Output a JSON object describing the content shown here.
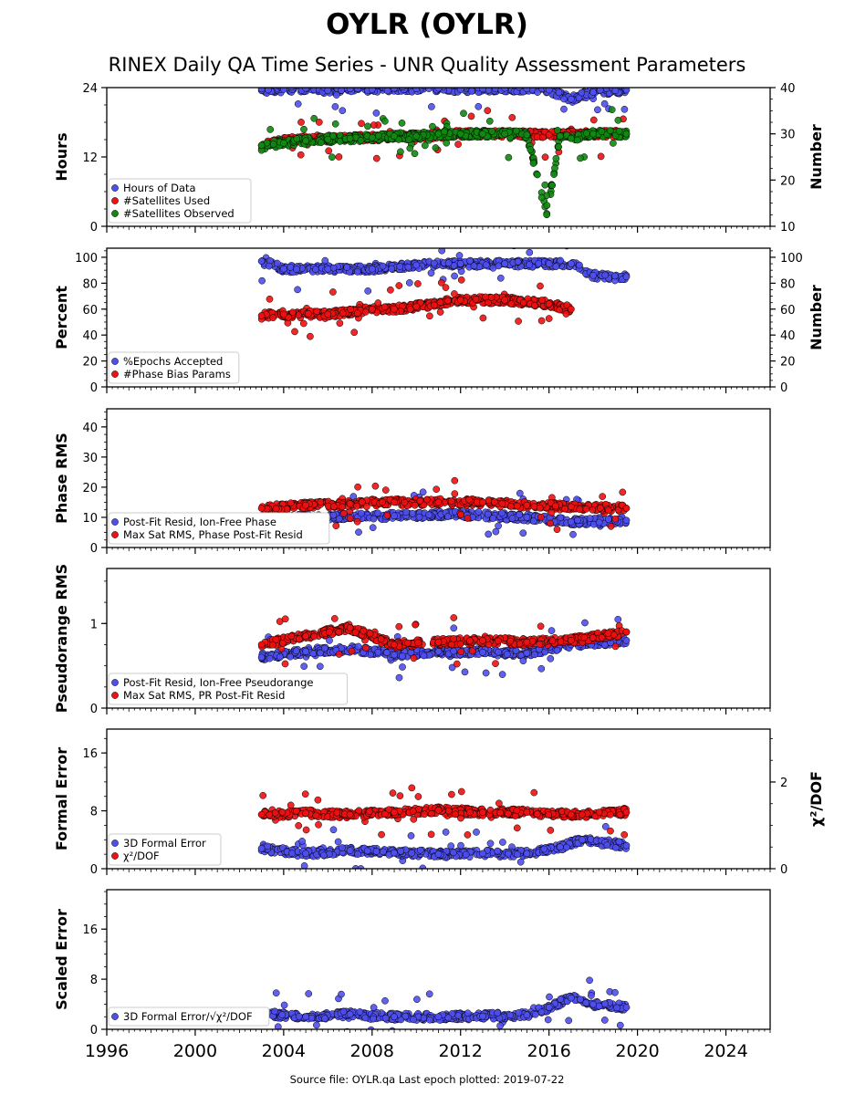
{
  "title": "OYLR (OYLR)",
  "subtitle": "RINEX Daily QA Time Series - UNR Quality Assessment Parameters",
  "footer": "Source file: OYLR.qa Last epoch plotted: 2019-07-22",
  "colors": {
    "blue": "#4f4ff0",
    "red": "#ee1111",
    "green": "#118811",
    "edge": "#000000"
  },
  "chart_data": {
    "type": "scatter",
    "x_axis": {
      "range": [
        1996,
        2026
      ],
      "ticks": [
        1996,
        2000,
        2004,
        2008,
        2012,
        2016,
        2020,
        2024
      ],
      "tick_labels": [
        "1996",
        "2000",
        "2004",
        "2008",
        "2012",
        "2016",
        "2020",
        "2024"
      ]
    },
    "data_span": [
      2002.9,
      2019.55
    ],
    "panels": [
      {
        "id": "hours",
        "ylabel_left": "Hours",
        "ylim_left": [
          0,
          24
        ],
        "ticks_left": [
          0,
          12,
          24
        ],
        "tick_labels_left": [
          "0",
          "12",
          "24"
        ],
        "ylabel_right": "Number",
        "ylim_right": [
          10,
          40
        ],
        "ticks_right": [
          10,
          20,
          30,
          40
        ],
        "tick_labels_right": [
          "10",
          "20",
          "30",
          "40"
        ],
        "legend": [
          "Hours of Data",
          "#Satellites Used",
          "#Satellites Observed"
        ],
        "series": [
          {
            "name": "Hours of Data",
            "color": "blue",
            "axis": "left",
            "x": [
              2003.0,
              2003.3,
              2004.0,
              2005.0,
              2006.0,
              2007.0,
              2008.0,
              2009.0,
              2010.0,
              2011.0,
              2012.0,
              2013.0,
              2014.0,
              2015.0,
              2016.0,
              2017.0,
              2018.0,
              2019.0,
              2019.5
            ],
            "y": [
              23.8,
              23.6,
              23.7,
              23.9,
              23.5,
              23.8,
              23.7,
              23.9,
              23.8,
              23.9,
              23.7,
              23.8,
              23.9,
              23.8,
              23.6,
              22.0,
              23.2,
              23.5,
              23.6
            ]
          },
          {
            "name": "#Satellites Used",
            "color": "red",
            "axis": "right",
            "x": [
              2003.0,
              2004.0,
              2006.0,
              2008.0,
              2010.0,
              2012.0,
              2014.0,
              2016.0,
              2018.0,
              2019.5
            ],
            "y": [
              27.5,
              28.5,
              29.0,
              29.2,
              29.5,
              30.0,
              30.0,
              29.8,
              30.0,
              30.0
            ]
          },
          {
            "name": "#Satellites Observed",
            "color": "green",
            "axis": "right",
            "x": [
              2003.0,
              2004.0,
              2005.0,
              2006.0,
              2007.0,
              2008.0,
              2009.0,
              2010.0,
              2011.0,
              2012.0,
              2013.0,
              2014.0,
              2015.0,
              2015.9,
              2016.5,
              2017.0,
              2018.0,
              2019.5
            ],
            "y": [
              27.5,
              28.0,
              28.5,
              28.8,
              29.0,
              29.2,
              29.5,
              29.5,
              30.0,
              30.0,
              30.0,
              30.0,
              29.8,
              12.5,
              29.5,
              29.0,
              30.0,
              30.0
            ]
          }
        ]
      },
      {
        "id": "percent",
        "ylabel_left": "Percent",
        "ylim_left": [
          0,
          107
        ],
        "ticks_left": [
          0,
          20,
          40,
          60,
          80,
          100
        ],
        "tick_labels_left": [
          "0",
          "20",
          "40",
          "60",
          "80",
          "100"
        ],
        "ylabel_right": "Number",
        "ylim_right": [
          0,
          107
        ],
        "ticks_right": [
          0,
          20,
          40,
          60,
          80,
          100
        ],
        "tick_labels_right": [
          "0",
          "20",
          "40",
          "60",
          "80",
          "100"
        ],
        "legend": [
          "%Epochs Accepted",
          "#Phase Bias Params"
        ],
        "series": [
          {
            "name": "%Epochs Accepted",
            "color": "blue",
            "axis": "left",
            "x": [
              2003.0,
              2004.0,
              2006.0,
              2008.0,
              2010.0,
              2012.0,
              2014.0,
              2016.0,
              2017.0,
              2018.0,
              2019.5
            ],
            "y": [
              97,
              91,
              91,
              91,
              94,
              95,
              95,
              95,
              95,
              86,
              85
            ]
          },
          {
            "name": "#Phase Bias Params",
            "color": "red",
            "axis": "right",
            "x": [
              2003.0,
              2004.0,
              2006.0,
              2008.0,
              2009.0,
              2010.0,
              2012.0,
              2014.0,
              2016.0,
              2017.0
            ],
            "y": [
              55,
              56,
              56,
              60,
              60,
              62,
              67,
              67,
              64,
              60
            ]
          }
        ]
      },
      {
        "id": "phase_rms",
        "ylabel_left": "Phase RMS",
        "ylim_left": [
          0,
          46
        ],
        "ticks_left": [
          0,
          10,
          20,
          30,
          40
        ],
        "tick_labels_left": [
          "0",
          "10",
          "20",
          "30",
          "40"
        ],
        "legend": [
          "Post-Fit Resid, Ion-Free Phase",
          "Max Sat RMS, Phase Post-Fit Resid"
        ],
        "series": [
          {
            "name": "Post-Fit Resid, Ion-Free Phase",
            "color": "blue",
            "axis": "left",
            "x": [
              2003.0,
              2006.0,
              2009.0,
              2012.0,
              2015.0,
              2017.0,
              2019.5
            ],
            "y": [
              9.5,
              10.0,
              10.5,
              11.0,
              10.0,
              8.5,
              9.0
            ]
          },
          {
            "name": "Max Sat RMS, Phase Post-Fit Resid",
            "color": "red",
            "axis": "left",
            "x": [
              2003.0,
              2005.0,
              2007.0,
              2009.0,
              2011.0,
              2013.0,
              2015.0,
              2017.0,
              2019.5
            ],
            "y": [
              13.0,
              14.0,
              14.5,
              15.0,
              15.0,
              15.0,
              14.0,
              13.5,
              13.0
            ]
          }
        ]
      },
      {
        "id": "pseudorange_rms",
        "ylabel_left": "Pseudorange RMS",
        "ylim_left": [
          0,
          1.65
        ],
        "ticks_left": [
          0,
          1
        ],
        "tick_labels_left": [
          "0",
          "1"
        ],
        "legend": [
          "Post-Fit Resid, Ion-Free Pseudorange",
          "Max Sat RMS, PR Post-Fit Resid"
        ],
        "series": [
          {
            "name": "Post-Fit Resid, Ion-Free Pseudorange",
            "color": "blue",
            "axis": "left",
            "x": [
              2003.0,
              2005.0,
              2007.0,
              2009.0,
              2011.0,
              2013.0,
              2015.0,
              2017.0,
              2019.5
            ],
            "y": [
              0.6,
              0.67,
              0.7,
              0.63,
              0.67,
              0.66,
              0.65,
              0.75,
              0.8
            ]
          },
          {
            "name": "Max Sat RMS, PR Post-Fit Resid",
            "color": "red",
            "axis": "left",
            "x": [
              2003.0,
              2005.0,
              2007.0,
              2009.0,
              2011.0,
              2013.0,
              2015.0,
              2017.0,
              2019.5
            ],
            "y": [
              0.75,
              0.85,
              0.95,
              0.75,
              0.78,
              0.8,
              0.78,
              0.8,
              0.9
            ]
          }
        ]
      },
      {
        "id": "formal_error",
        "ylabel_left": "Formal Error",
        "ylim_left": [
          0,
          19.3
        ],
        "ticks_left": [
          0,
          8,
          16
        ],
        "tick_labels_left": [
          "0",
          "8",
          "16"
        ],
        "ylabel_right": "χ²/DOF",
        "ylim_right": [
          0,
          3.22
        ],
        "ticks_right": [
          0,
          2
        ],
        "tick_labels_right": [
          "0",
          "2"
        ],
        "legend": [
          "3D Formal Error",
          "χ²/DOF"
        ],
        "series": [
          {
            "name": "3D Formal Error",
            "color": "blue",
            "axis": "left",
            "x": [
              2003.0,
              2005.0,
              2007.0,
              2009.0,
              2011.0,
              2013.0,
              2015.0,
              2016.5,
              2017.5,
              2019.5
            ],
            "y": [
              2.8,
              2.1,
              2.5,
              2.2,
              2.0,
              2.1,
              2.1,
              3.0,
              4.0,
              3.2
            ]
          },
          {
            "name": "χ²/DOF",
            "color": "red",
            "axis": "right",
            "x": [
              2003.0,
              2005.0,
              2007.0,
              2009.0,
              2011.0,
              2013.0,
              2015.0,
              2017.0,
              2019.5
            ],
            "y": [
              1.25,
              1.28,
              1.25,
              1.3,
              1.35,
              1.3,
              1.3,
              1.25,
              1.3
            ]
          }
        ]
      },
      {
        "id": "scaled_error",
        "ylabel_left": "Scaled Error",
        "ylim_left": [
          0,
          22.3
        ],
        "ticks_left": [
          0,
          8,
          16
        ],
        "tick_labels_left": [
          "0",
          "8",
          "16"
        ],
        "legend": [
          "3D Formal Error/√χ²/DOF"
        ],
        "series": [
          {
            "name": "3D Formal Error/√χ²/DOF",
            "color": "blue",
            "axis": "left",
            "x": [
              2003.0,
              2005.0,
              2007.0,
              2009.0,
              2011.0,
              2013.0,
              2015.0,
              2016.0,
              2017.0,
              2018.0,
              2019.5
            ],
            "y": [
              2.5,
              2.0,
              2.4,
              2.0,
              2.0,
              2.1,
              2.3,
              3.5,
              5.0,
              4.0,
              3.5
            ]
          }
        ]
      }
    ]
  }
}
